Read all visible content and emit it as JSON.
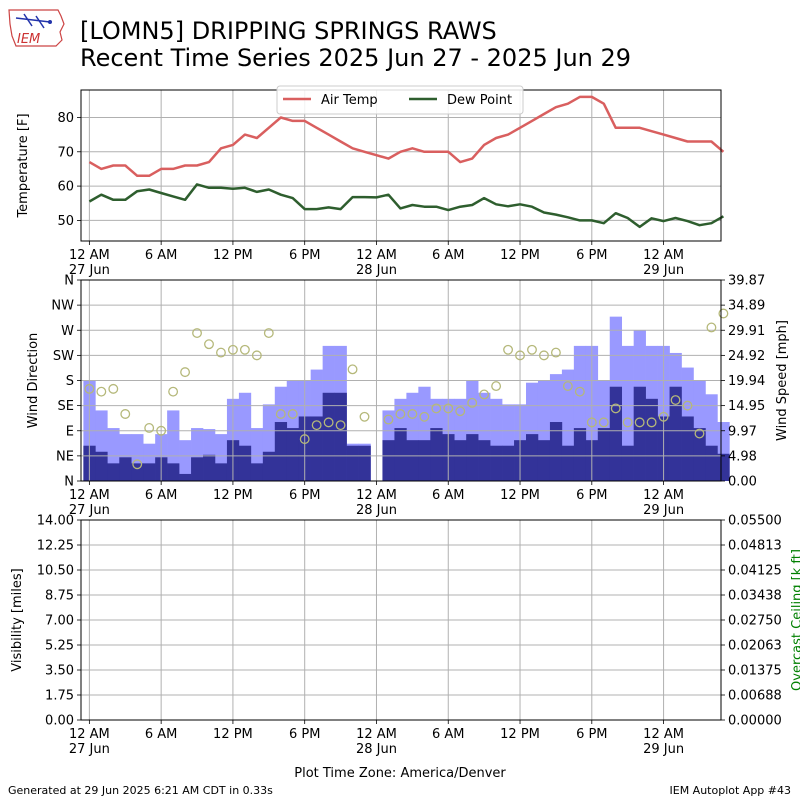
{
  "header": {
    "logo_text": "IEM",
    "title_line1": "[LOMN5] DRIPPING SPRINGS RAWS",
    "title_line2": "Recent Time Series 2025 Jun 27 - 2025 Jun 29"
  },
  "footer": {
    "generated": "Generated at 29 Jun 2025 6:21 AM CDT in 0.33s",
    "app": "IEM Autoplot App #43"
  },
  "colors": {
    "air_temp": "#d95f5f",
    "dew_point": "#2e5e2e",
    "wind_gust": "#9999ff",
    "wind_speed": "#333399",
    "wind_dir": "#b5b87a",
    "ceiling_label": "#008000",
    "grid": "#b0b0b0"
  },
  "chart_data": [
    {
      "type": "line",
      "panel": "temperature",
      "ylabel": "Temperature [F]",
      "ylim": [
        44,
        88
      ],
      "yticks": [
        50,
        60,
        70,
        80
      ],
      "grid": true,
      "legend_placement": "top-center",
      "x_hours": [
        0,
        1,
        2,
        3,
        4,
        5,
        6,
        7,
        8,
        9,
        10,
        11,
        12,
        13,
        14,
        15,
        16,
        17,
        18,
        19,
        20,
        21,
        22,
        23,
        24,
        25,
        26,
        27,
        28,
        29,
        30,
        31,
        32,
        33,
        34,
        35,
        36,
        37,
        38,
        39,
        40,
        41,
        42,
        43,
        44,
        45,
        46,
        47,
        48,
        49,
        50,
        51,
        52,
        53
      ],
      "series": [
        {
          "name": "Air Temp",
          "values": [
            67,
            65,
            66,
            66,
            63,
            63,
            65,
            65,
            66,
            66,
            67,
            71,
            72,
            75,
            74,
            77,
            80,
            79,
            79,
            77,
            75,
            73,
            71,
            70,
            69,
            68,
            70,
            71,
            70,
            70,
            70,
            67,
            68,
            72,
            74,
            75,
            77,
            79,
            81,
            83,
            84,
            86,
            86,
            84,
            77,
            77,
            77,
            76,
            75,
            74,
            73,
            73,
            73,
            70
          ]
        },
        {
          "name": "Dew Point",
          "values": [
            55.5,
            57.5,
            56,
            56,
            58.5,
            59,
            58,
            57,
            56,
            60.5,
            59.5,
            59.5,
            59.2,
            59.5,
            58.3,
            59,
            57.5,
            56.5,
            53.3,
            53.3,
            53.8,
            53.3,
            56.8,
            56.8,
            56.7,
            57.5,
            53.5,
            54.5,
            54,
            54,
            53,
            54,
            54.5,
            56.5,
            54.7,
            54.1,
            54.7,
            54,
            52.3,
            51.7,
            50.9,
            50,
            50,
            49.2,
            52.1,
            50.7,
            48.1,
            50.6,
            49.8,
            50.7,
            49.8,
            48.6,
            49.2,
            51.2
          ]
        }
      ]
    },
    {
      "type": "bar",
      "panel": "wind",
      "ylabel": "Wind Direction",
      "y2label": "Wind Speed [mph]",
      "ylim": [
        0,
        360
      ],
      "y2lim": [
        0,
        39.87
      ],
      "direction_ticks": [
        "N",
        "NE",
        "E",
        "SE",
        "S",
        "SW",
        "W",
        "NW",
        "N"
      ],
      "speed_ticks": [
        "0.00",
        "4.98",
        "9.97",
        "14.95",
        "19.94",
        "24.92",
        "29.91",
        "34.89",
        "39.87"
      ],
      "grid": true,
      "x_hours": [
        0,
        1,
        2,
        3,
        4,
        5,
        6,
        7,
        8,
        9,
        10,
        11,
        12,
        13,
        14,
        15,
        16,
        17,
        18,
        19,
        20,
        21,
        22,
        23,
        25,
        26,
        27,
        28,
        29,
        30,
        31,
        32,
        33,
        34,
        35,
        36,
        37,
        38,
        39,
        40,
        41,
        42,
        43,
        44,
        45,
        46,
        47,
        48,
        49,
        50,
        51,
        52,
        53
      ],
      "series": [
        {
          "name": "Gust",
          "values": [
            19.9,
            14,
            10.5,
            9.3,
            9.3,
            7.4,
            9.3,
            14,
            8.1,
            10.5,
            10.3,
            9.3,
            16.3,
            17.5,
            10.5,
            15.2,
            18.7,
            19.9,
            19.9,
            22.1,
            26.8,
            26.8,
            7.4,
            7.4,
            14,
            16.3,
            17.5,
            18.7,
            16.3,
            16.3,
            16.3,
            19.9,
            17.5,
            16.3,
            15.2,
            15.2,
            19.5,
            19.9,
            21.2,
            22.1,
            26.8,
            26.8,
            19.9,
            32.6,
            26.8,
            29.9,
            26.8,
            26.8,
            25.4,
            22.5,
            19.9,
            17.2,
            11.7
          ]
        },
        {
          "name": "Speed",
          "values": [
            7,
            5.8,
            3.5,
            4.7,
            3.5,
            3.5,
            4.7,
            3.5,
            1.4,
            4.7,
            5.2,
            3.5,
            8.1,
            7,
            3.5,
            5.8,
            11.7,
            10.5,
            12.8,
            12.8,
            17.5,
            17.5,
            7,
            7,
            8.1,
            10.5,
            8.1,
            8.1,
            10.5,
            9.3,
            8.1,
            9.3,
            8.1,
            7,
            7,
            8.1,
            9.3,
            8.1,
            11.7,
            7,
            10.5,
            8.1,
            10.5,
            18.7,
            7,
            18.7,
            16.3,
            12.8,
            18.7,
            12.8,
            10.5,
            7,
            5.4
          ]
        },
        {
          "name": "Direction",
          "values": [
            165,
            160,
            165,
            120,
            30,
            95,
            90,
            160,
            195,
            265,
            245,
            230,
            235,
            235,
            225,
            265,
            120,
            120,
            75,
            100,
            105,
            100,
            200,
            115,
            110,
            120,
            120,
            115,
            130,
            130,
            125,
            140,
            155,
            170,
            235,
            225,
            235,
            225,
            230,
            170,
            160,
            105,
            105,
            130,
            105,
            105,
            105,
            115,
            145,
            135,
            85,
            275,
            300
          ]
        }
      ]
    },
    {
      "type": "line",
      "panel": "visibility",
      "ylabel": "Visibility [miles]",
      "y2label": "Overcast Ceiling [k ft]",
      "ylim": [
        0,
        14
      ],
      "y2lim": [
        0,
        0.055
      ],
      "vis_ticks": [
        "0.00",
        "1.75",
        "3.50",
        "5.25",
        "7.00",
        "8.75",
        "10.50",
        "12.25",
        "14.00"
      ],
      "ceiling_ticks": [
        "0.00000",
        "0.00688",
        "0.01375",
        "0.02063",
        "0.02750",
        "0.03438",
        "0.04125",
        "0.04813",
        "0.05500"
      ],
      "grid": true,
      "series": []
    }
  ],
  "time_axis": {
    "tick_hours": [
      0,
      6,
      12,
      18,
      24,
      30,
      36,
      42,
      48
    ],
    "tick_labels": [
      "12 AM\n27 Jun",
      "6 AM",
      "12 PM",
      "6 PM",
      "12 AM\n28 Jun",
      "6 AM",
      "12 PM",
      "6 PM",
      "12 AM\n29 Jun"
    ],
    "xlim": [
      -0.7,
      52.8
    ],
    "xlabel": "Plot Time Zone: America/Denver"
  }
}
